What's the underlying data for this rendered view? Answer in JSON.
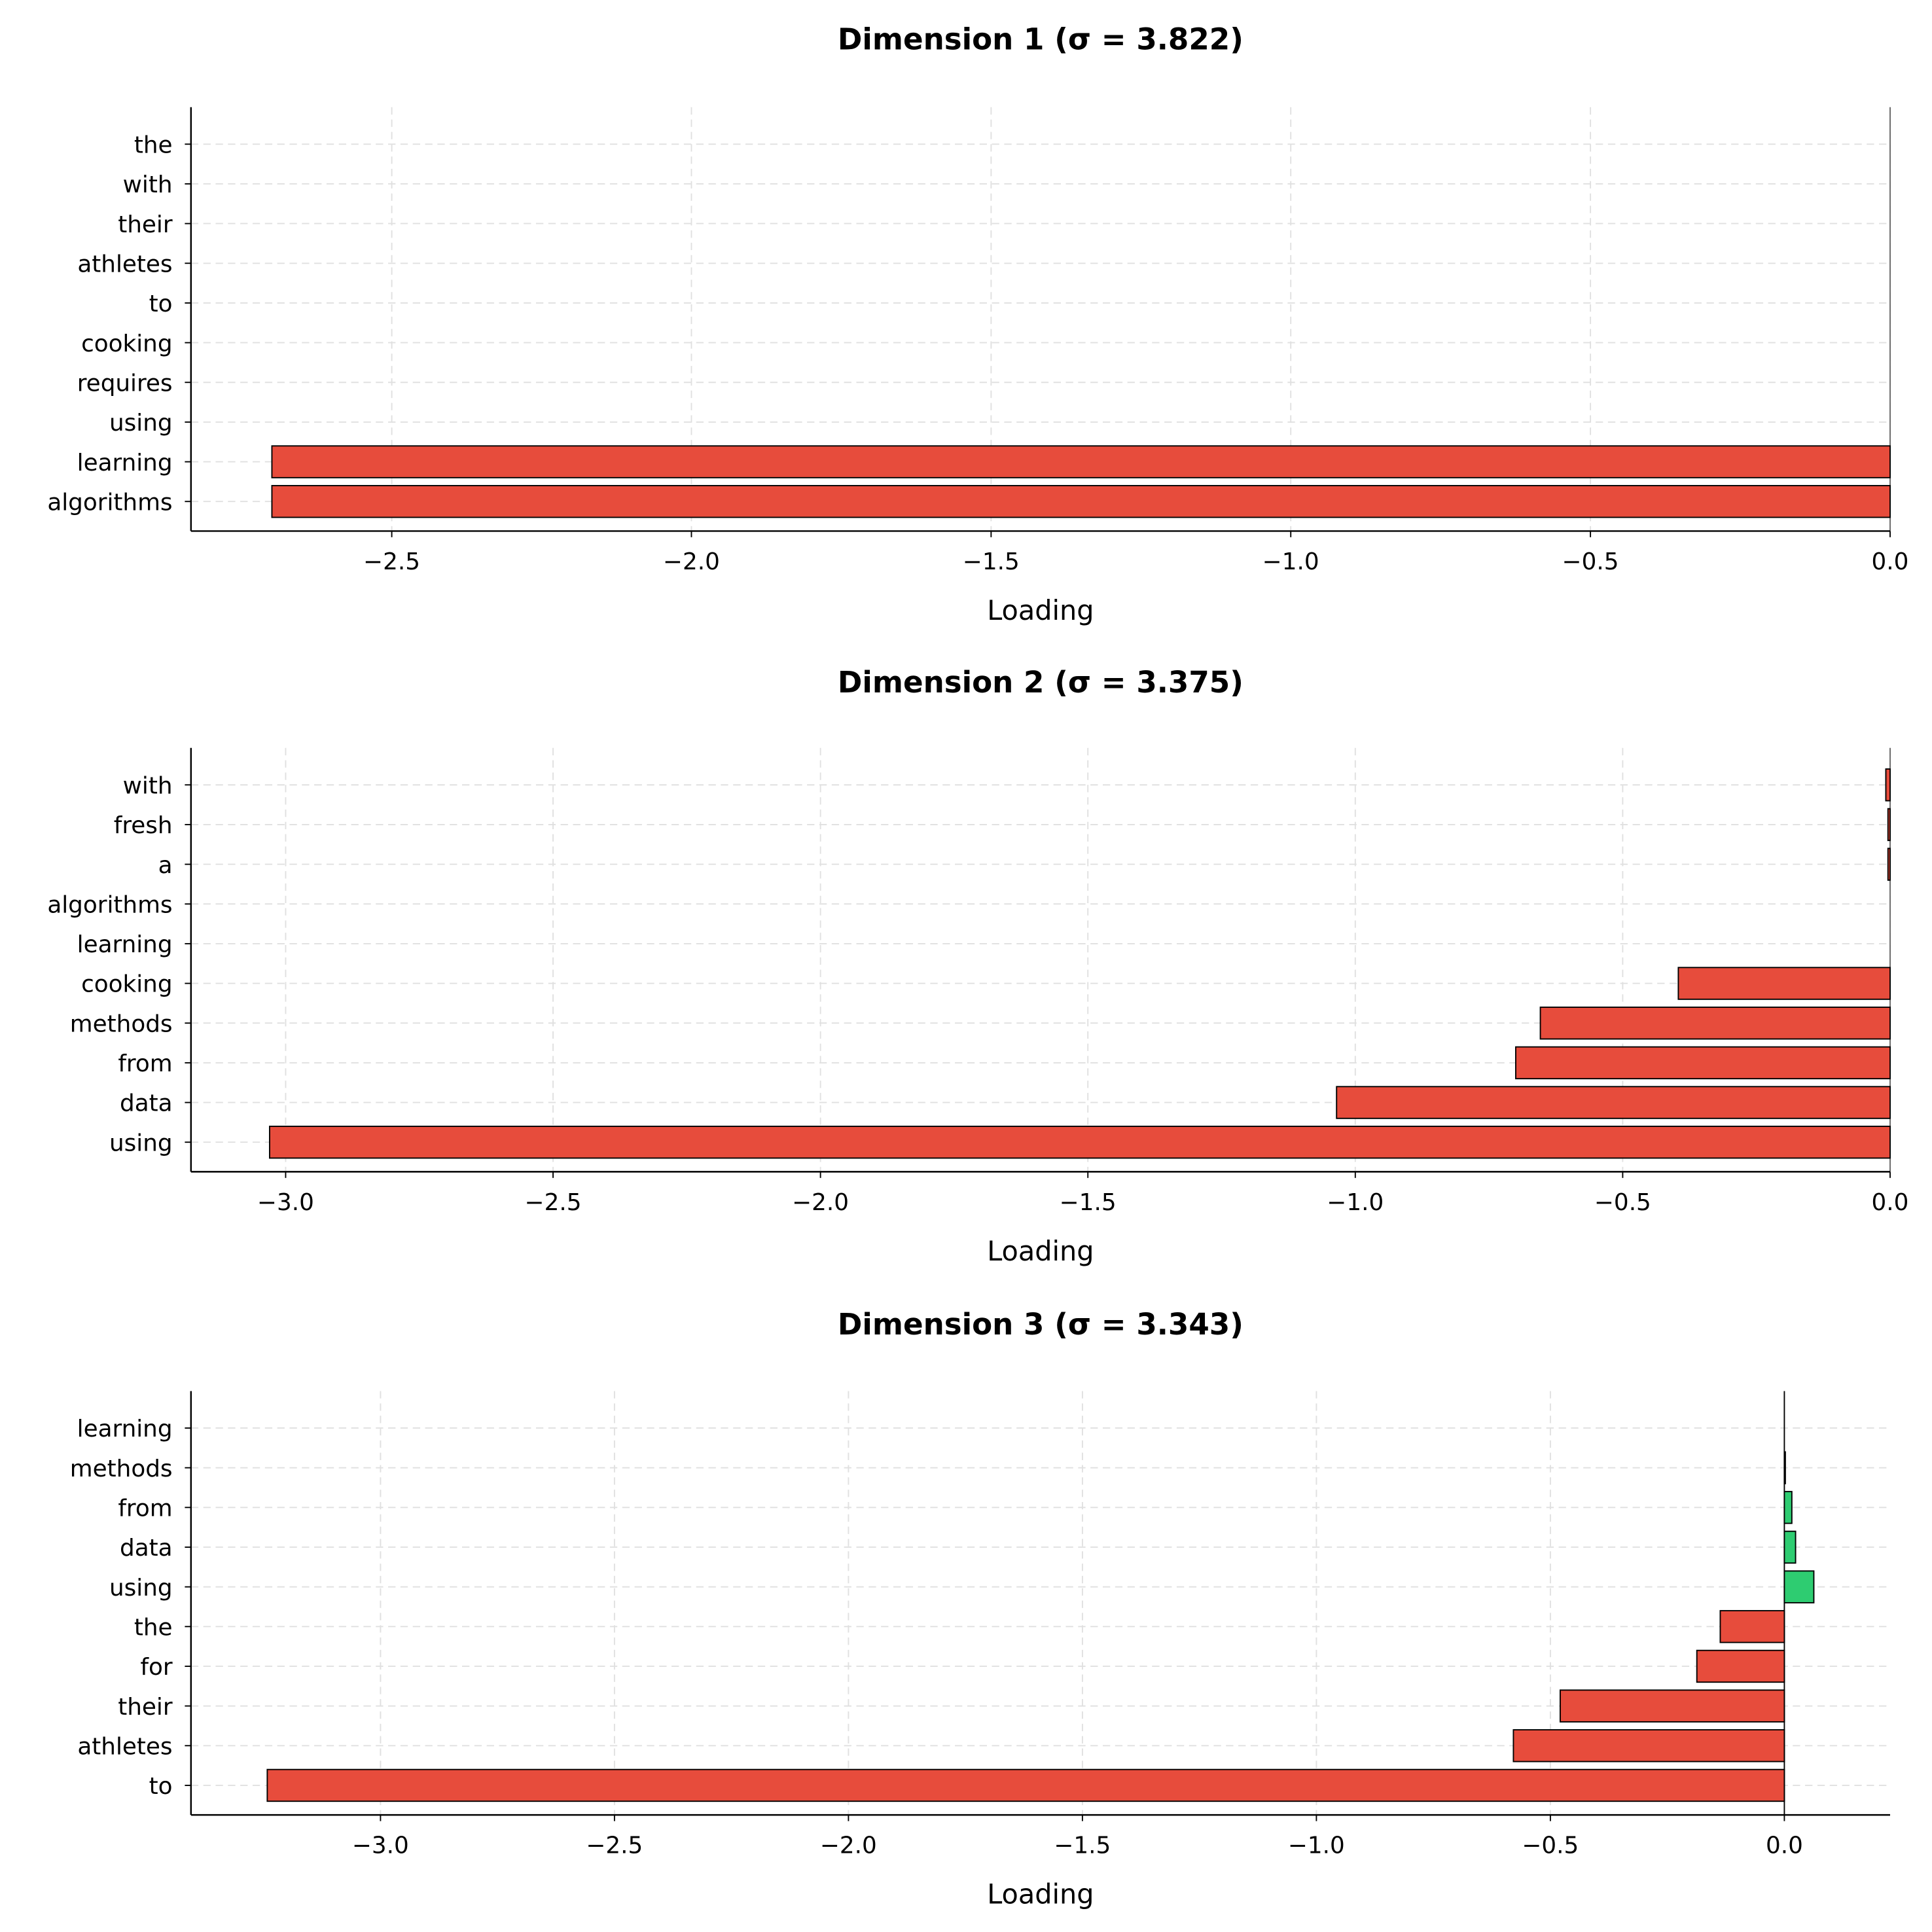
{
  "chart_data": [
    {
      "type": "bar",
      "orientation": "horizontal",
      "title": "Dimension 1 (σ = 3.822)",
      "xlabel": "Loading",
      "xlim": [
        -2.835,
        0.0
      ],
      "xticks": [
        -2.5,
        -2.0,
        -1.5,
        -1.0,
        -0.5,
        0.0
      ],
      "xtick_labels": [
        "−2.5",
        "−2.0",
        "−1.5",
        "−1.0",
        "−0.5",
        "0.0"
      ],
      "categories": [
        "the",
        "with",
        "their",
        "athletes",
        "to",
        "cooking",
        "requires",
        "using",
        "learning",
        "algorithms"
      ],
      "values": [
        0,
        0,
        0,
        0,
        0,
        0,
        0,
        0,
        -2.7,
        -2.7
      ],
      "grid": true
    },
    {
      "type": "bar",
      "orientation": "horizontal",
      "title": "Dimension 2 (σ = 3.375)",
      "xlabel": "Loading",
      "xlim": [
        -3.177,
        0.0
      ],
      "xticks": [
        -3.0,
        -2.5,
        -2.0,
        -1.5,
        -1.0,
        -0.5,
        0.0
      ],
      "xtick_labels": [
        "−3.0",
        "−2.5",
        "−2.0",
        "−1.5",
        "−1.0",
        "−0.5",
        "0.0"
      ],
      "categories": [
        "with",
        "fresh",
        "a",
        "algorithms",
        "learning",
        "cooking",
        "methods",
        "from",
        "data",
        "using"
      ],
      "values": [
        -0.008,
        -0.004,
        -0.004,
        0,
        0,
        -0.396,
        -0.654,
        -0.7,
        -1.035,
        -3.03
      ],
      "grid": true
    },
    {
      "type": "bar",
      "orientation": "horizontal",
      "title": "Dimension 3 (σ = 3.343)",
      "xlabel": "Loading",
      "xlim": [
        -3.405,
        0.226
      ],
      "xticks": [
        -3.0,
        -2.5,
        -2.0,
        -1.5,
        -1.0,
        -0.5,
        0.0
      ],
      "xtick_labels": [
        "−3.0",
        "−2.5",
        "−2.0",
        "−1.5",
        "−1.0",
        "−0.5",
        "0.0"
      ],
      "categories": [
        "learning",
        "methods",
        "from",
        "data",
        "using",
        "the",
        "for",
        "their",
        "athletes",
        "to"
      ],
      "values": [
        0,
        0.002,
        0.016,
        0.024,
        0.063,
        -0.137,
        -0.187,
        -0.479,
        -0.579,
        -3.242
      ],
      "grid": true
    }
  ],
  "colors": {
    "positive": "#2ecc71",
    "negative": "#e74c3c",
    "grid": "#e0e0e0"
  }
}
